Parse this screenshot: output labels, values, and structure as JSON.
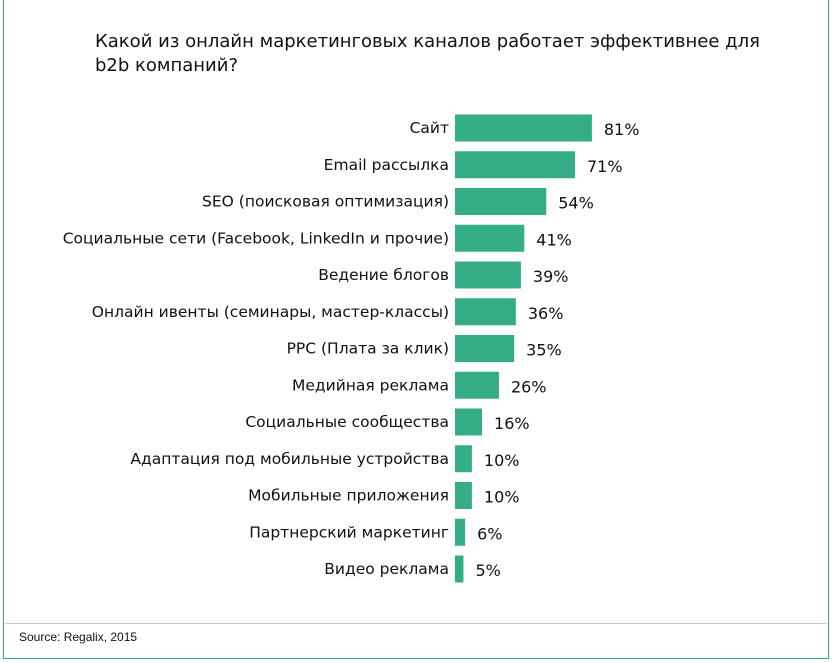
{
  "chart_data": {
    "type": "bar",
    "orientation": "horizontal",
    "title": "Какой из онлайн маркетинговых каналов работает эффективнее для b2b компаний?",
    "categories": [
      "Сайт",
      "Email рассылка",
      "SEO (поисковая оптимизация)",
      "Социальные сети (Facebook, LinkedIn и прочие)",
      "Ведение блогов",
      "Онлайн ивенты (семинары, мастер-классы)",
      "PPC (Плата за клик)",
      "Медийная реклама",
      "Социальные сообщества",
      "Адаптация под мобильные устройства",
      "Мобильные приложения",
      "Партнерский маркетинг",
      "Видео реклама"
    ],
    "values": [
      81,
      71,
      54,
      41,
      39,
      36,
      35,
      26,
      16,
      10,
      10,
      6,
      5
    ],
    "value_suffix": "%",
    "xlim": [
      0,
      100
    ],
    "grid": false,
    "bar_color": "#34ad87"
  },
  "source": "Source: Regalix, 2015"
}
